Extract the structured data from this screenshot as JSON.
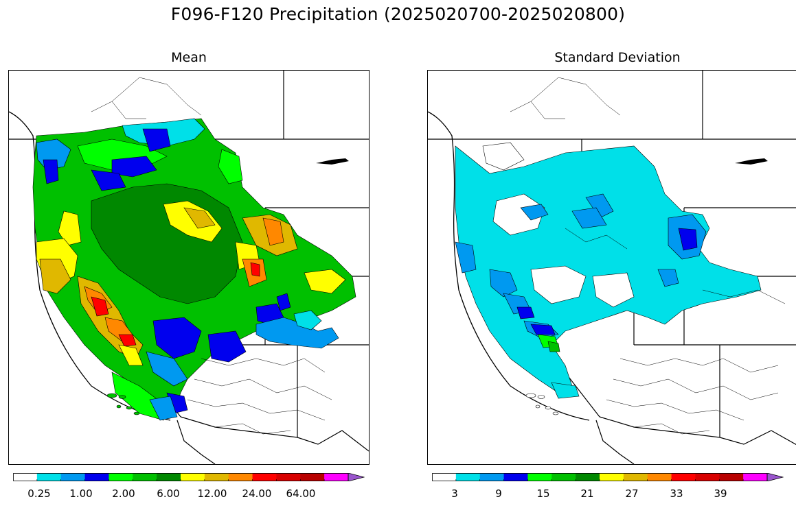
{
  "figure": {
    "title": "F096-F120 Precipitation (2025020700-2025020800)"
  },
  "panels": [
    {
      "title": "Mean",
      "colorbar": {
        "colors": [
          "#ffffff",
          "#00e0e8",
          "#0099f0",
          "#0000ee",
          "#00ff00",
          "#00c000",
          "#008800",
          "#ffff00",
          "#e0b800",
          "#ff8800",
          "#ff0000",
          "#d80000",
          "#b80000",
          "#ff00ff",
          "#9955cc"
        ],
        "tick_labels": [
          "0.25",
          "1.00",
          "2.00",
          "6.00",
          "12.00",
          "24.00",
          "64.00"
        ],
        "extend": "max"
      },
      "legend_regions": [
        {
          "category": "dark-green",
          "color": "#008800"
        },
        {
          "category": "yellow",
          "color": "#ffff00"
        },
        {
          "category": "red",
          "color": "#ff0000"
        }
      ]
    },
    {
      "title": "Standard Deviation",
      "colorbar": {
        "colors": [
          "#ffffff",
          "#00e0e8",
          "#0099f0",
          "#0000ee",
          "#00ff00",
          "#00c000",
          "#008800",
          "#ffff00",
          "#e0b800",
          "#ff8800",
          "#ff0000",
          "#d80000",
          "#b80000",
          "#ff00ff",
          "#9955cc"
        ],
        "tick_labels": [
          "3",
          "9",
          "15",
          "21",
          "27",
          "33",
          "39"
        ],
        "extend": "max"
      }
    }
  ]
}
